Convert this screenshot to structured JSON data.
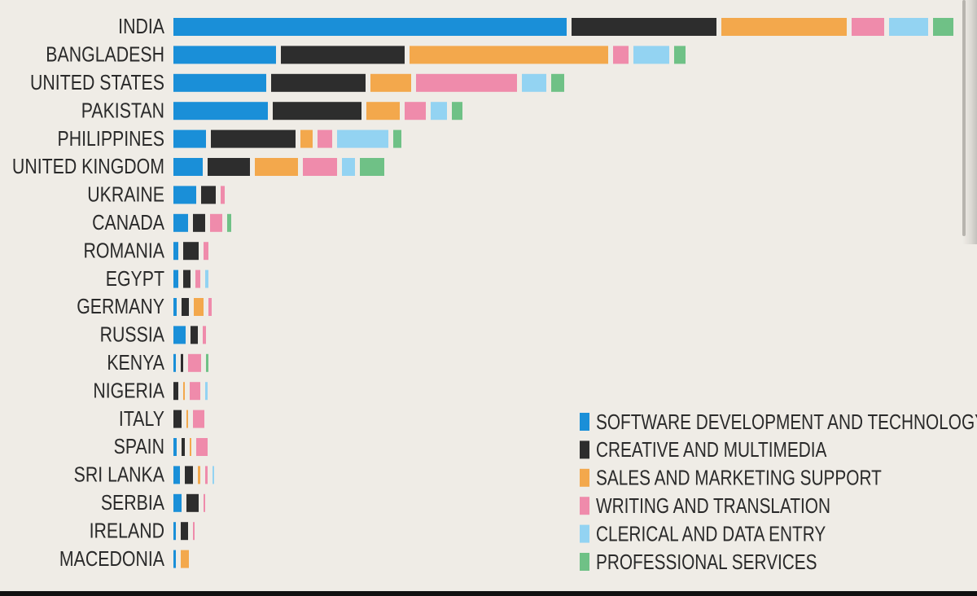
{
  "chart_data": {
    "type": "bar",
    "stacking": "grouped-horizontal",
    "title": "",
    "xlabel": "",
    "ylabel": "",
    "legend_position": "bottom-right",
    "categories": [
      "INDIA",
      "BANGLADESH",
      "UNITED STATES",
      "PAKISTAN",
      "PHILIPPINES",
      "UNITED KINGDOM",
      "UKRAINE",
      "CANADA",
      "ROMANIA",
      "EGYPT",
      "GERMANY",
      "RUSSIA",
      "KENYA",
      "NIGERIA",
      "ITALY",
      "SPAIN",
      "SRI LANKA",
      "SERBIA",
      "IRELAND",
      "MACEDONIA"
    ],
    "series": [
      {
        "name": "SOFTWARE DEVELOPMENT AND TECHNOLOGY",
        "color": "#1a8fd8",
        "values": [
          483,
          126,
          114,
          116,
          40,
          36,
          28,
          18,
          6,
          6,
          4,
          15,
          3,
          0,
          0,
          4,
          8,
          10,
          3,
          3
        ]
      },
      {
        "name": "CREATIVE AND MULTIMEDIA",
        "color": "#2d2d2d",
        "values": [
          178,
          152,
          116,
          109,
          104,
          52,
          18,
          15,
          19,
          9,
          9,
          9,
          3,
          6,
          10,
          4,
          10,
          15,
          9,
          0
        ]
      },
      {
        "name": "SALES AND MARKETING SUPPORT",
        "color": "#f3a84c",
        "values": [
          154,
          244,
          50,
          41,
          15,
          53,
          0,
          0,
          0,
          0,
          12,
          0,
          0,
          2,
          2,
          2,
          3,
          0,
          0,
          10
        ]
      },
      {
        "name": "WRITING AND TRANSLATION",
        "color": "#ef8bab",
        "values": [
          40,
          19,
          124,
          26,
          18,
          42,
          5,
          15,
          6,
          6,
          4,
          4,
          16,
          13,
          14,
          14,
          3,
          2,
          2,
          0
        ]
      },
      {
        "name": "CLERICAL AND DATA ENTRY",
        "color": "#93d3f2",
        "values": [
          48,
          44,
          30,
          20,
          63,
          16,
          0,
          0,
          0,
          4,
          0,
          0,
          0,
          3,
          0,
          0,
          2,
          0,
          0,
          0
        ]
      },
      {
        "name": "PROFESSIONAL SERVICES",
        "color": "#6fc186",
        "values": [
          25,
          14,
          16,
          13,
          10,
          30,
          0,
          5,
          0,
          0,
          0,
          0,
          3,
          0,
          0,
          0,
          0,
          0,
          0,
          0
        ]
      }
    ]
  }
}
